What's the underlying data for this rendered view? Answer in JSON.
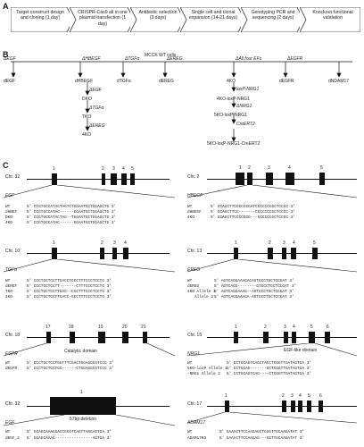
{
  "panels": {
    "a": "A",
    "b": "B",
    "c": "C"
  },
  "workflow": [
    "Target construct design and cloning (1 day)",
    "CRISPR-Cas9 all in one plasmid transfection (1 day)",
    "Antibiotic selection (3 days)",
    "Single cell and clonal expansion (14-21 days)",
    "Genotyping PCR and sequencing (2 days)",
    "Knockout functional validation"
  ],
  "lineage": {
    "root": "MCCK WT cells",
    "branches": [
      "ΔEGF",
      "ΔHBEGF",
      "ΔTGFα",
      "ΔEREG",
      "ΔAll four EFs",
      "ΔEGFR",
      "ΔEGFR ΔADAM17"
    ],
    "leaves": [
      "dEGF",
      "dHBEGF",
      "dTGFα",
      "dEREG",
      "dEGFR",
      "dNDAM17"
    ],
    "chain_left": [
      "ΔEGF",
      "DKO",
      "ΔTGFα",
      "TKO",
      "ΔEREG",
      "4KO"
    ],
    "chain_right": [
      "4KO",
      "loxP-NRG1",
      "4KO-loxP-NRG1",
      "ΔNRG1",
      "5KO-loxP-NRG1",
      "CreERT2",
      "5KO-loxP-NRG1-CreERT2"
    ]
  },
  "loci": [
    {
      "chr": "Chr. 32",
      "gene": "EGF",
      "exons": [
        "1",
        "2",
        "3",
        "4",
        "5"
      ],
      "rows": [
        {
          "label": "WT",
          "seq": "5' CCGTGCCATACTAGTCTGGAATGCTGGAGCTG 3'"
        },
        {
          "label": "dHBEF",
          "seq": "5' CCGTGCCATAC------GGAATGCTGGAGCTG 3'"
        },
        {
          "label": "DKO",
          "seq": "5' CCGTGCCATACTAG--TGGAATGCTGGAGCTG 3'"
        },
        {
          "label": "4KO",
          "seq": "5' CCGTGCCATAC------GGAATGCTGGAGCTG 3'"
        }
      ]
    },
    {
      "chr": "Chr. 2",
      "gene": "HBEGF",
      "exons": [
        "1",
        "2",
        "3",
        "4",
        "5"
      ],
      "rows": [
        {
          "label": "WT",
          "seq": "5' GCAGCTTCCCCCGGATCCCCCCCGCTCCCC 3'"
        },
        {
          "label": "dHBEGF",
          "seq": "5' GCAGCTTCC-------CCCCCCCGCTCCCC 3'"
        },
        {
          "label": "4KO",
          "seq": "5' GCAGCTTCCCCCGG---CCCCCCGCTCCCC 3'"
        }
      ]
    },
    {
      "chr": "Chr. 10",
      "gene": "TGFα",
      "exons": [
        "1",
        "2",
        "3",
        "4"
      ],
      "rows": [
        {
          "label": "WT",
          "seq": "5' CCCTGCTCCTTGACCTCCCTTTCCCTCCTG 3'"
        },
        {
          "label": "dEREF",
          "seq": "5' CCCTGCTCCTT-------CTTTCCCTCCTG 3'"
        },
        {
          "label": "TKO",
          "seq": "5' CCCTGCTCCTTGAC--CCCTTTCCCTCCTG 3'"
        },
        {
          "label": "4KO",
          "seq": "5' CCCTGCTCCTTGACC-CCCTTTCCCTCCTG 3'"
        }
      ]
    },
    {
      "chr": "Chr. 13",
      "gene": "EREG",
      "exons": [
        "1",
        "2",
        "3",
        "4",
        "5"
      ],
      "rows": [
        {
          "label": "WT",
          "seq": "5' AGTCAGGAAAGACAGTGCCTGCTCCGAT 3'"
        },
        {
          "label": "dEREG",
          "seq": "5' AGTCAGG--------GTGCCTGCTCCGAT 3'"
        },
        {
          "label": "4KO Allele 1",
          "seq": "5' AGTCAGGAAAG--AGTGCCTGCTCCGAT 3'"
        },
        {
          "label": "Allele 2",
          "seq": "5' AGTCAGGAAAGA-AGTGCCTGCTCCGAT 3'"
        }
      ]
    },
    {
      "chr": "Chr. 18",
      "gene": "EGFR",
      "exons": [
        "17",
        "18",
        "19",
        "20",
        "21"
      ],
      "domain": "Catalytic domain",
      "rows": [
        {
          "label": "WT",
          "seq": "5' CCCTGCTCCTGGTTTCGACTGGAGGCGTCCG 3'"
        },
        {
          "label": "dEGFR",
          "seq": "5' CCCTGCTCCTGG------CTGGAGGCGTCCG 3'"
        }
      ]
    },
    {
      "chr": "Chr. 15",
      "gene": "NRG1",
      "exons": [
        "1",
        "2",
        "3",
        "4",
        "5",
        "6"
      ],
      "domain": "EGF-like domain",
      "rows": [
        {
          "label": "WT",
          "seq": "5' CCTGCAGTCAGCTACCTCGGTTGATAGTGA 3'"
        },
        {
          "label": "5KO-loxP Allele 1",
          "seq": "5' CCTGCAG-------CCTCGGTTGATAGTGA 3'"
        },
        {
          "label": "-NRG1 Allele 2",
          "seq": "5' CCTGCAGTCAG----CTCGGTTGATAGTGA 3'"
        }
      ]
    },
    {
      "chr": "Chr. 32",
      "gene": "EGF",
      "exons": [
        "1"
      ],
      "domain": "57bp deletion",
      "rows": [
        {
          "label": "WT",
          "seq": "5' GGAGCAAAGGACCGCGTCAGTTAAGAGTGA 3'"
        },
        {
          "label": "dEGF_2",
          "seq": "5' GGAGCAAAG----------------AGTGA 3'"
        }
      ]
    },
    {
      "chr": "Chr. 17",
      "gene": "ADAM17",
      "exons": [
        "1",
        "2",
        "3",
        "4",
        "5",
        "6"
      ],
      "rows": [
        {
          "label": "WT",
          "seq": "5' GAAACTTCCAAGAGCTGGGTTGCAAGATAT 3'"
        },
        {
          "label": "ADAM17KO",
          "seq": "5' GAAACTTCCAAGAG---GGTTGCAAGATAT 3'"
        }
      ]
    }
  ]
}
